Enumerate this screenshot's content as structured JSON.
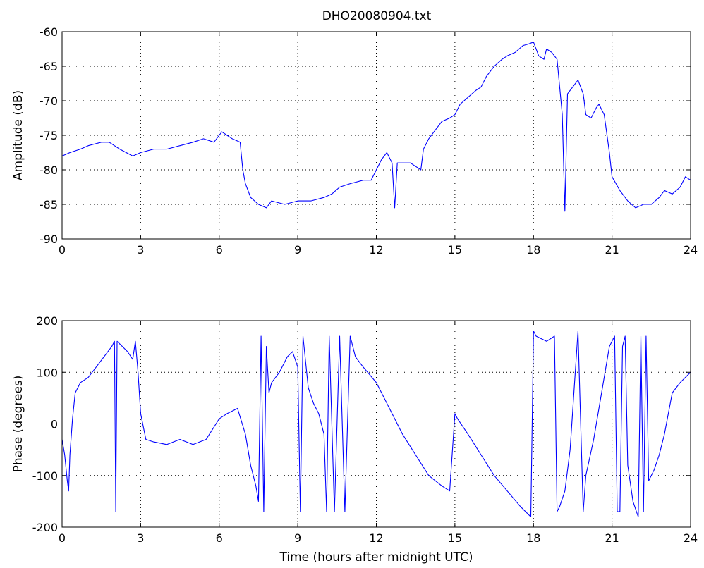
{
  "figure": {
    "title": "DHO20080904.txt"
  },
  "chart_data": [
    {
      "type": "line",
      "title": "DHO20080904.txt",
      "xlabel": "",
      "ylabel": "Amplitude (dB)",
      "xlim": [
        0,
        24
      ],
      "ylim": [
        -90,
        -60
      ],
      "xticks": [
        0,
        3,
        6,
        9,
        12,
        15,
        18,
        21,
        24
      ],
      "yticks": [
        -90,
        -85,
        -80,
        -75,
        -70,
        -65,
        -60
      ],
      "grid": true,
      "line_color": "#0000ff",
      "series": [
        {
          "x": [
            0,
            0.3,
            0.7,
            1.0,
            1.5,
            1.8,
            2.2,
            2.7,
            3.0,
            3.5,
            4.0,
            4.5,
            5.0,
            5.4,
            5.8,
            6.1,
            6.3,
            6.5,
            6.8,
            6.9,
            7.0,
            7.2,
            7.5,
            7.8,
            8.0,
            8.5,
            9.0,
            9.5,
            10.0,
            10.3,
            10.6,
            11.0,
            11.5,
            11.8,
            12.0,
            12.2,
            12.4,
            12.6,
            12.7,
            12.8,
            13.0,
            13.3,
            13.5,
            13.7,
            13.8,
            14.0,
            14.3,
            14.5,
            14.8,
            15.0,
            15.2,
            15.5,
            15.8,
            16.0,
            16.2,
            16.5,
            16.8,
            17.0,
            17.3,
            17.6,
            17.8,
            18.0,
            18.2,
            18.4,
            18.5,
            18.7,
            18.9,
            19.0,
            19.1,
            19.2,
            19.3,
            19.5,
            19.7,
            19.9,
            20.0,
            20.2,
            20.4,
            20.5,
            20.7,
            20.9,
            21.0,
            21.3,
            21.6,
            21.9,
            22.2,
            22.5,
            22.8,
            23.0,
            23.3,
            23.6,
            23.8,
            24.0
          ],
          "y": [
            -78,
            -77.5,
            -77,
            -76.5,
            -76,
            -76,
            -77,
            -78,
            -77.5,
            -77,
            -77,
            -76.5,
            -76,
            -75.5,
            -76,
            -74.5,
            -75,
            -75.5,
            -76,
            -80,
            -82,
            -84,
            -85,
            -85.5,
            -84.5,
            -85,
            -84.5,
            -84.5,
            -84,
            -83.5,
            -82.5,
            -82,
            -81.5,
            -81.5,
            -80,
            -78.5,
            -77.5,
            -79,
            -85.5,
            -79,
            -79,
            -79,
            -79.5,
            -80,
            -77,
            -75.5,
            -74,
            -73,
            -72.5,
            -72,
            -70.5,
            -69.5,
            -68.5,
            -68,
            -66.5,
            -65,
            -64,
            -63.5,
            -63,
            -62,
            -61.8,
            -61.5,
            -63.5,
            -64,
            -62.5,
            -63,
            -64,
            -68,
            -72,
            -86,
            -69,
            -68,
            -67,
            -69,
            -72,
            -72.5,
            -71,
            -70.5,
            -72,
            -77.5,
            -81,
            -83,
            -84.5,
            -85.5,
            -85,
            -85,
            -84,
            -83,
            -83.5,
            -82.5,
            -81,
            -81.5
          ]
        }
      ]
    },
    {
      "type": "line",
      "title": "",
      "xlabel": "Time (hours after midnight UTC)",
      "ylabel": "Phase (degrees)",
      "xlim": [
        0,
        24
      ],
      "ylim": [
        -200,
        200
      ],
      "xticks": [
        0,
        3,
        6,
        9,
        12,
        15,
        18,
        21,
        24
      ],
      "yticks": [
        -200,
        -100,
        0,
        100,
        200
      ],
      "grid": true,
      "line_color": "#0000ff",
      "series": [
        {
          "x": [
            0,
            0.1,
            0.2,
            0.25,
            0.3,
            0.4,
            0.5,
            0.7,
            1.0,
            1.3,
            1.6,
            1.9,
            2.0,
            2.05,
            2.1,
            2.3,
            2.5,
            2.7,
            2.8,
            2.9,
            3.0,
            3.2,
            3.5,
            4.0,
            4.5,
            5.0,
            5.5,
            6.0,
            6.3,
            6.5,
            6.7,
            7.0,
            7.2,
            7.4,
            7.5,
            7.6,
            7.7,
            7.8,
            7.9,
            8.0,
            8.3,
            8.6,
            8.8,
            9.0,
            9.1,
            9.2,
            9.4,
            9.6,
            9.8,
            10.0,
            10.1,
            10.2,
            10.4,
            10.6,
            10.8,
            11.0,
            11.2,
            11.5,
            12.0,
            12.5,
            13.0,
            13.5,
            14.0,
            14.5,
            14.8,
            15.0,
            15.1,
            15.5,
            16.0,
            16.5,
            17.0,
            17.5,
            17.9,
            18.0,
            18.1,
            18.5,
            18.8,
            18.9,
            19.0,
            19.2,
            19.4,
            19.7,
            19.9,
            20.0,
            20.3,
            20.6,
            20.9,
            21.1,
            21.2,
            21.3,
            21.4,
            21.5,
            21.6,
            21.8,
            22.0,
            22.1,
            22.2,
            22.3,
            22.4,
            22.6,
            22.8,
            23.0,
            23.3,
            23.6,
            24.0
          ],
          "y": [
            -30,
            -60,
            -110,
            -130,
            -60,
            10,
            60,
            80,
            90,
            110,
            130,
            150,
            160,
            -170,
            160,
            150,
            140,
            125,
            160,
            100,
            20,
            -30,
            -35,
            -40,
            -30,
            -40,
            -30,
            10,
            20,
            25,
            30,
            -20,
            -80,
            -120,
            -150,
            170,
            -170,
            150,
            60,
            80,
            100,
            130,
            140,
            110,
            -170,
            170,
            70,
            40,
            20,
            -20,
            -170,
            170,
            -170,
            170,
            -170,
            170,
            130,
            110,
            80,
            30,
            -20,
            -60,
            -100,
            -120,
            -130,
            20,
            10,
            -20,
            -60,
            -100,
            -130,
            -160,
            -180,
            180,
            170,
            160,
            170,
            -170,
            -160,
            -130,
            -50,
            180,
            -170,
            -100,
            -30,
            60,
            150,
            170,
            -170,
            -170,
            150,
            170,
            -80,
            -150,
            -180,
            170,
            -170,
            170,
            -110,
            -90,
            -60,
            -20,
            60,
            80,
            100
          ]
        }
      ]
    }
  ]
}
